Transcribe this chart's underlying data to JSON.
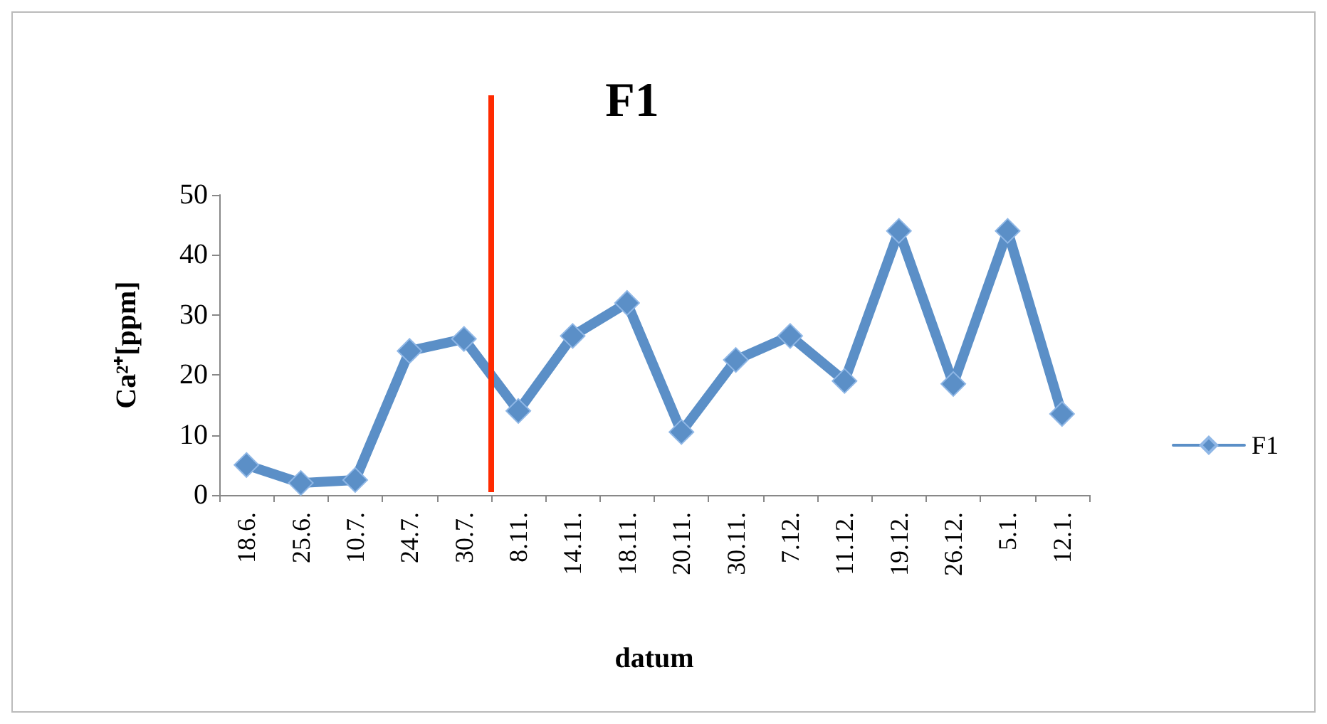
{
  "chart_data": {
    "type": "line",
    "title": "F1",
    "xlabel": "datum",
    "ylabel": "Ca²⁺[ppm]",
    "categories": [
      "18.6.",
      "25.6.",
      "10.7.",
      "24.7.",
      "30.7.",
      "8.11.",
      "14.11.",
      "18.11.",
      "20.11.",
      "30.11.",
      "7.12.",
      "11.12.",
      "19.12.",
      "26.12.",
      "5.1.",
      "12.1."
    ],
    "series": [
      {
        "name": "F1",
        "color": "#5b8fc7",
        "values": [
          5,
          2,
          2.5,
          24,
          26,
          14,
          26.5,
          32,
          10.5,
          22.5,
          26.5,
          19,
          44,
          18.5,
          44,
          13.5
        ]
      }
    ],
    "ylim": [
      0,
      50
    ],
    "yticks": [
      0,
      10,
      20,
      30,
      40,
      50
    ],
    "grid": false,
    "legend": "right",
    "marker": "diamond",
    "line_style": "solid"
  }
}
